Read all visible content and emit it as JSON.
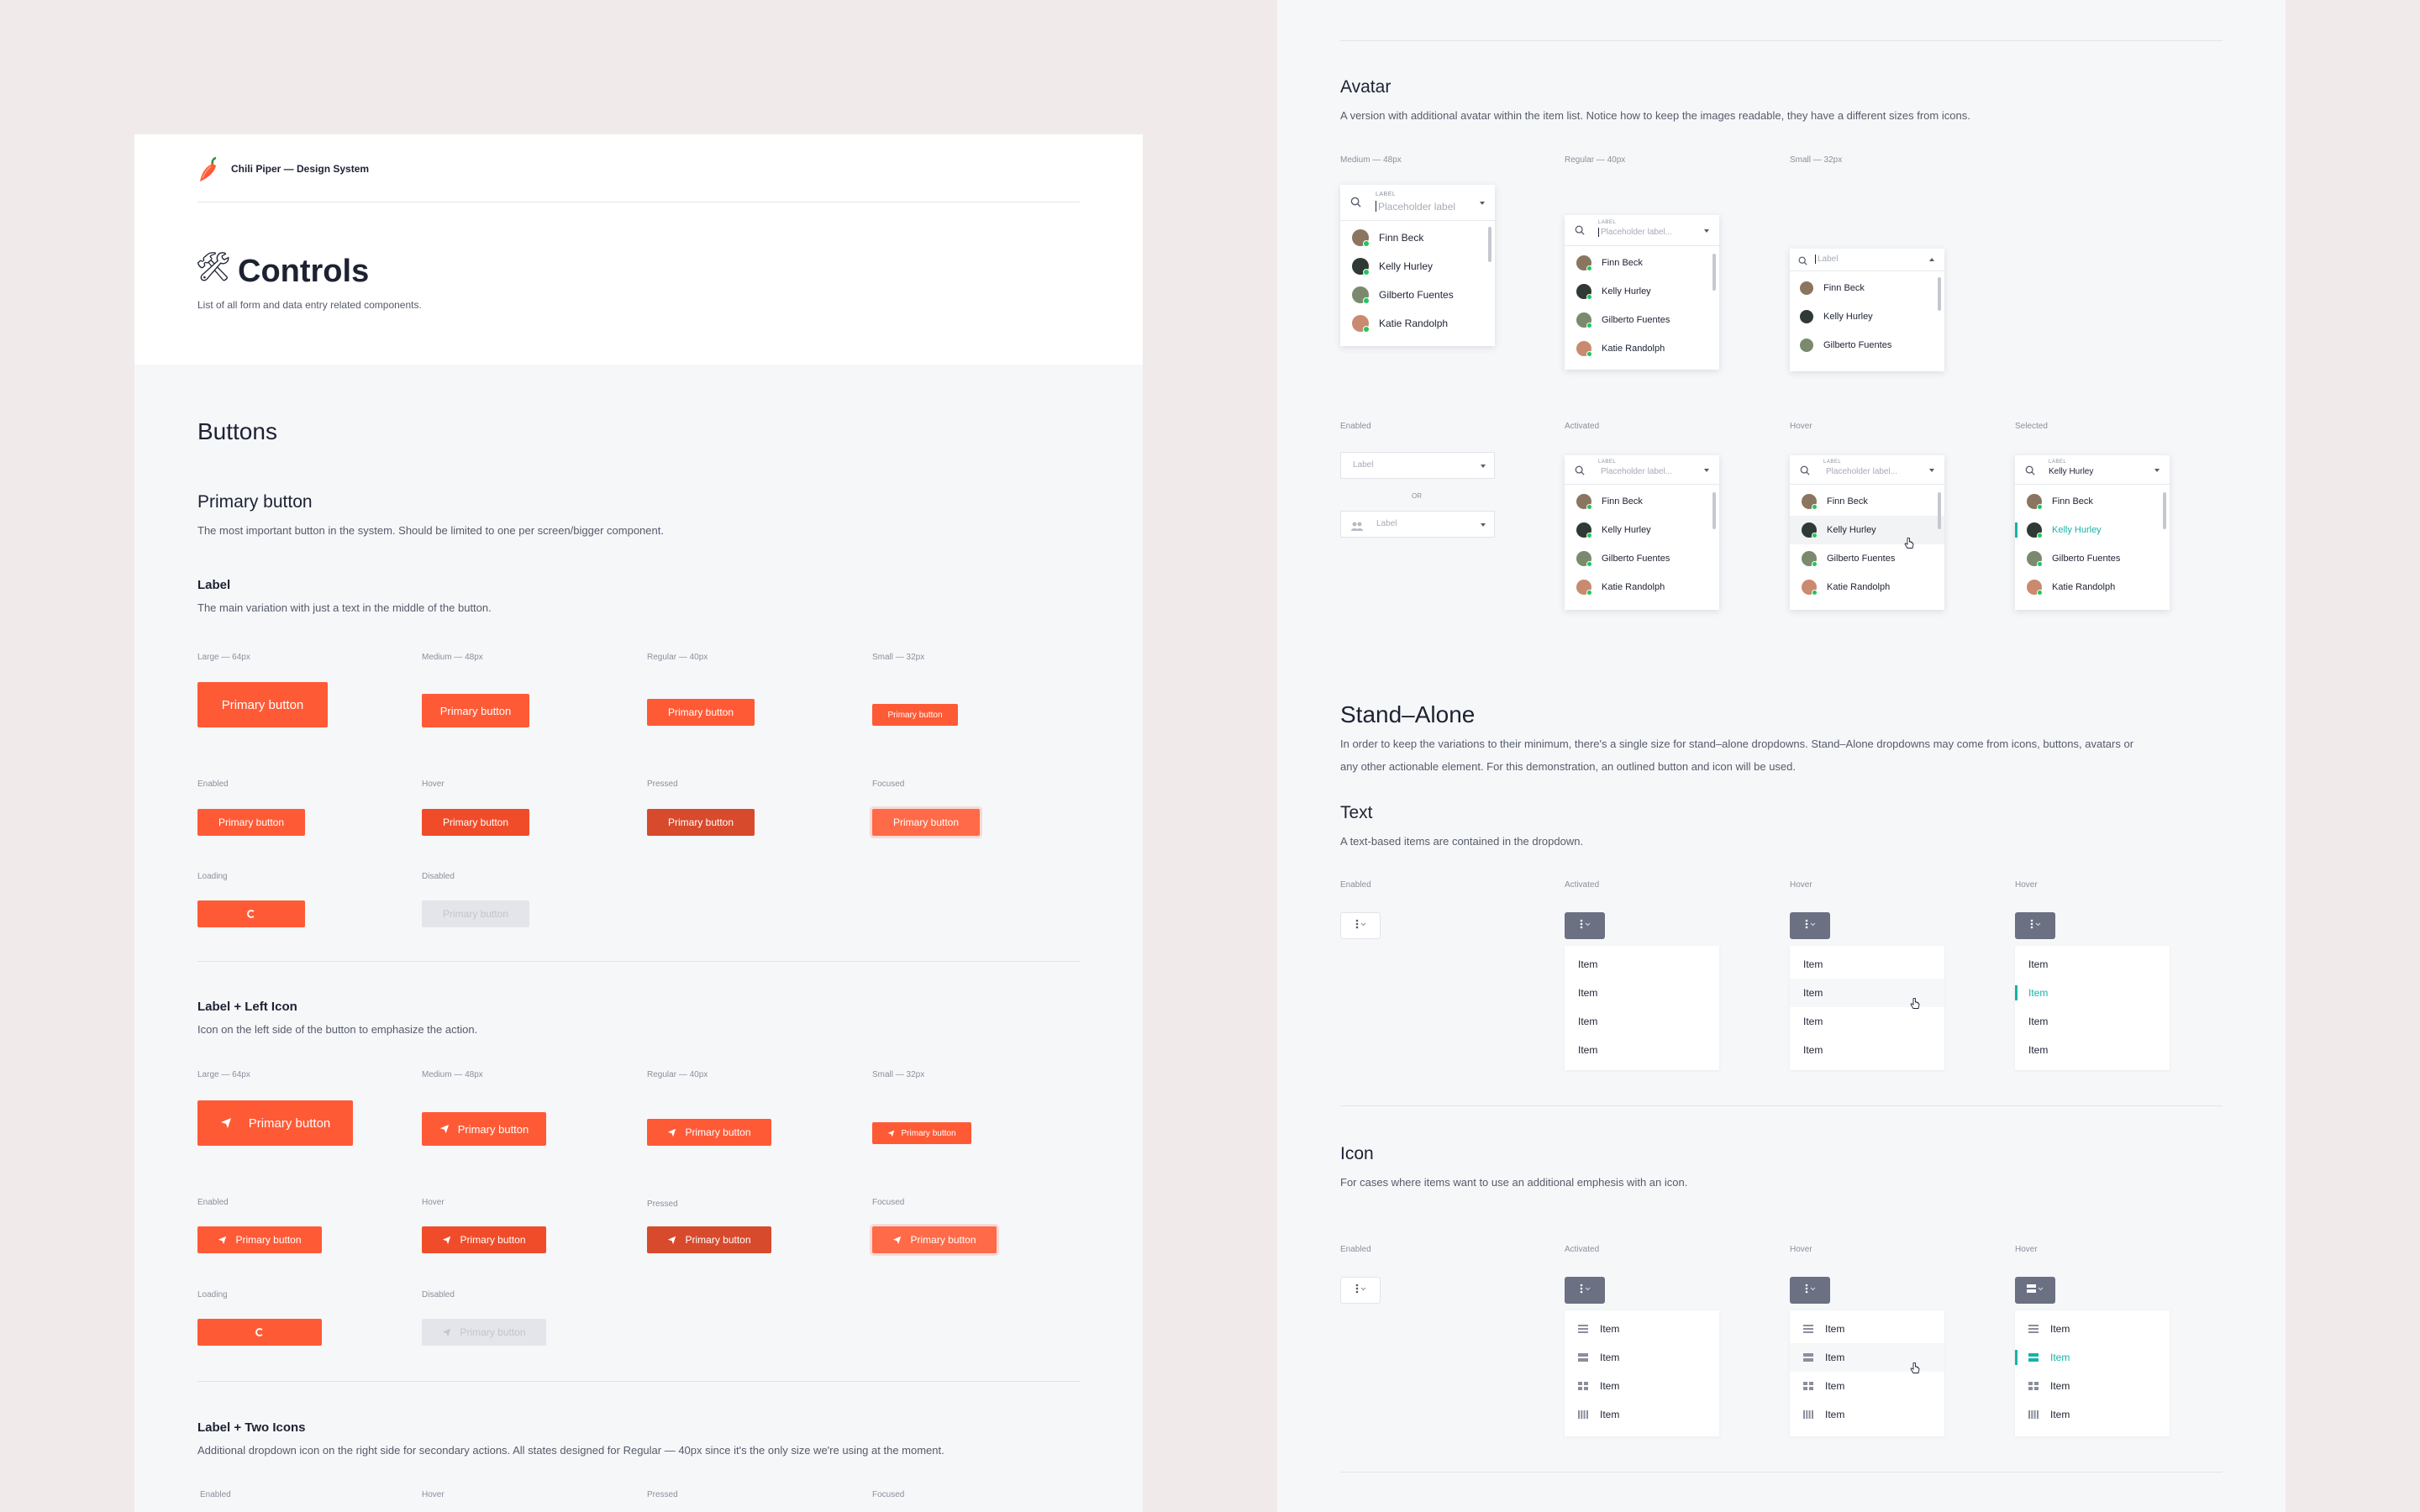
{
  "header": {
    "brand": "Chili Piper — Design System",
    "icon": "chili-pepper-icon"
  },
  "page": {
    "emoji": "🛠",
    "title": "Controls",
    "subtitle": "List of all form and data entry related components."
  },
  "colors": {
    "primary": "#ff5a36",
    "pressed": "#d84a2c",
    "disabled": "#e3e5ea",
    "selected": "#17b2a8",
    "online": "#22c55e"
  },
  "buttons": {
    "title": "Buttons",
    "primary": {
      "title": "Primary button",
      "desc": "The most important button in the system. Should be limited to one per screen/bigger component."
    },
    "label_section": {
      "title": "Label",
      "desc": "The main variation with just a text in the middle of the button."
    },
    "left_icon_section": {
      "title": "Label + Left Icon",
      "desc": "Icon on the left side of the button to emphasize the action.",
      "icon": "send-icon"
    },
    "two_icons_section": {
      "title": "Label + Two Icons",
      "desc": "Additional dropdown icon on the right side for secondary actions. All states designed for Regular — 40px since it's the only size we're using at the moment."
    },
    "sizes": [
      "Large — 64px",
      "Medium — 48px",
      "Regular — 40px",
      "Small — 32px"
    ],
    "states": [
      "Enabled",
      "Hover",
      "Pressed",
      "Focused"
    ],
    "states2": [
      "Loading",
      "Disabled"
    ],
    "label": "Primary button"
  },
  "avatar": {
    "title": "Avatar",
    "desc": "A version with additional avatar within the item list. Notice how to keep the images readable, they have a different sizes from icons.",
    "sizes": [
      "Medium — 48px",
      "Regular — 40px",
      "Small — 32px"
    ],
    "states": [
      "Enabled",
      "Activated",
      "Hover",
      "Selected"
    ],
    "field_label": "LABEL",
    "placeholder": "Placeholder label",
    "placeholder_short": "Placeholder label...",
    "small_placeholder": "Label",
    "enabled_placeholder": "Label",
    "or": "OR",
    "selected_value": "Kelly Hurley",
    "people": [
      "Finn Beck",
      "Kelly Hurley",
      "Gilberto Fuentes",
      "Katie Randolph"
    ]
  },
  "standalone": {
    "title": "Stand–Alone",
    "desc_line1": "In order to keep the variations to their minimum, there's a single size for stand–alone dropdowns. Stand–Alone dropdowns may come from icons, buttons, avatars or",
    "desc_line2": "any other actionable element. For this demonstration, an outlined button and icon will be used.",
    "text": {
      "title": "Text",
      "desc": "A text-based items are contained in the dropdown.",
      "states": [
        "Enabled",
        "Activated",
        "Hover",
        "Hover"
      ]
    },
    "icon": {
      "title": "Icon",
      "desc": "For cases where items want to use an additional emphesis with an icon.",
      "states": [
        "Enabled",
        "Activated",
        "Hover",
        "Hover"
      ]
    },
    "items": [
      "Item",
      "Item",
      "Item",
      "Item"
    ],
    "item_icons": [
      "list-icon",
      "rows-icon",
      "grid-icon",
      "columns-icon"
    ]
  }
}
